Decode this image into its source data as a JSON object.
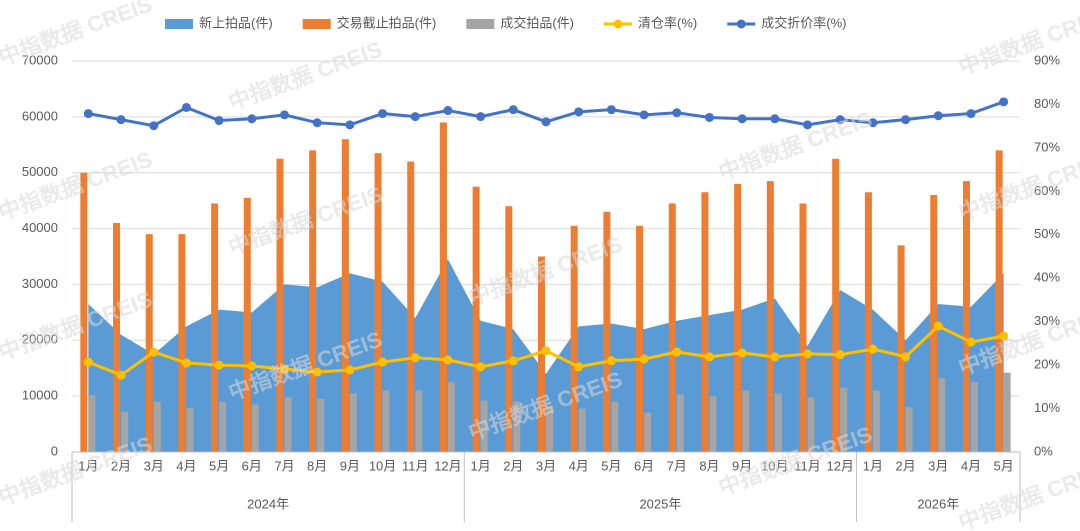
{
  "chart_data": {
    "type": "combo",
    "watermark": "中指数据 CREIS",
    "groups": [
      {
        "name": "2024年",
        "categories": [
          "1月",
          "2月",
          "3月",
          "4月",
          "5月",
          "6月",
          "7月",
          "8月",
          "9月",
          "10月",
          "11月",
          "12月"
        ]
      },
      {
        "name": "2025年",
        "categories": [
          "1月",
          "2月",
          "3月",
          "4月",
          "5月",
          "6月",
          "7月",
          "8月",
          "9月",
          "10月",
          "11月",
          "12月"
        ]
      },
      {
        "name": "2026年",
        "categories": [
          "1月",
          "2月",
          "3月",
          "4月",
          "5月"
        ]
      }
    ],
    "ylim": [
      0,
      70000
    ],
    "yticks": [
      0,
      10000,
      20000,
      30000,
      40000,
      50000,
      60000,
      70000
    ],
    "y2lim": [
      0,
      90
    ],
    "y2ticks": [
      {
        "value": 0,
        "label": "0%"
      },
      {
        "value": 10,
        "label": "10%"
      },
      {
        "value": 20,
        "label": "20%"
      },
      {
        "value": 30,
        "label": "30%"
      },
      {
        "value": 40,
        "label": "40%"
      },
      {
        "value": 50,
        "label": "50%"
      },
      {
        "value": 60,
        "label": "60%"
      },
      {
        "value": 70,
        "label": "70%"
      },
      {
        "value": 80,
        "label": "80%"
      },
      {
        "value": 90,
        "label": "90%"
      }
    ],
    "grid": true,
    "legend": "top",
    "series": [
      {
        "name": "新上拍品(件)",
        "kind": "area",
        "color": "#5b9bd5",
        "values": [
          26500,
          21000,
          17500,
          22500,
          25500,
          25000,
          30000,
          29500,
          32000,
          30500,
          24000,
          34500,
          23500,
          22000,
          14000,
          22500,
          23000,
          22000,
          23500,
          24500,
          25500,
          27500,
          19000,
          29000,
          25500,
          20000,
          26500,
          26000,
          32000
        ]
      },
      {
        "name": "交易截止拍品(件)",
        "kind": "bar",
        "color": "#ed7d31",
        "values": [
          50000,
          41000,
          39000,
          39000,
          44500,
          45500,
          52500,
          54000,
          56000,
          53500,
          52000,
          59000,
          47500,
          44000,
          35000,
          40500,
          43000,
          40500,
          44500,
          46500,
          48000,
          48500,
          44500,
          52500,
          46500,
          37000,
          46000,
          48500,
          54000
        ]
      },
      {
        "name": "成交拍品(件)",
        "kind": "bar",
        "color": "#a5a5a5",
        "values": [
          10200,
          7200,
          9000,
          7900,
          9000,
          8500,
          9800,
          9500,
          10500,
          11000,
          11000,
          12500,
          9200,
          9000,
          8200,
          7800,
          9000,
          7000,
          10300,
          10000,
          11000,
          10500,
          9800,
          11500,
          11000,
          8000,
          13200,
          12500,
          14200
        ]
      },
      {
        "name": "清仓率(%)",
        "kind": "line",
        "axis": "y2",
        "color": "#ffc000",
        "values": [
          20.7,
          17.7,
          23,
          20.5,
          20,
          19.8,
          19.1,
          18.4,
          18.9,
          20.7,
          21.7,
          21.2,
          19.6,
          21,
          23.3,
          19.6,
          21,
          21.4,
          23,
          21.9,
          22.8,
          21.9,
          22.6,
          22.4,
          23.7,
          21.9,
          29,
          25.3,
          26.7
        ]
      },
      {
        "name": "成交折价率(%)",
        "kind": "line",
        "axis": "y2",
        "color": "#4472c4",
        "values": [
          77.9,
          76.5,
          75.1,
          79.3,
          76.3,
          76.7,
          77.6,
          75.8,
          75.3,
          77.9,
          77.2,
          78.6,
          77.2,
          78.8,
          76,
          78.3,
          78.8,
          77.6,
          78.1,
          77,
          76.7,
          76.7,
          75.3,
          76.5,
          75.8,
          76.5,
          77.4,
          77.9,
          80.6
        ]
      }
    ]
  }
}
